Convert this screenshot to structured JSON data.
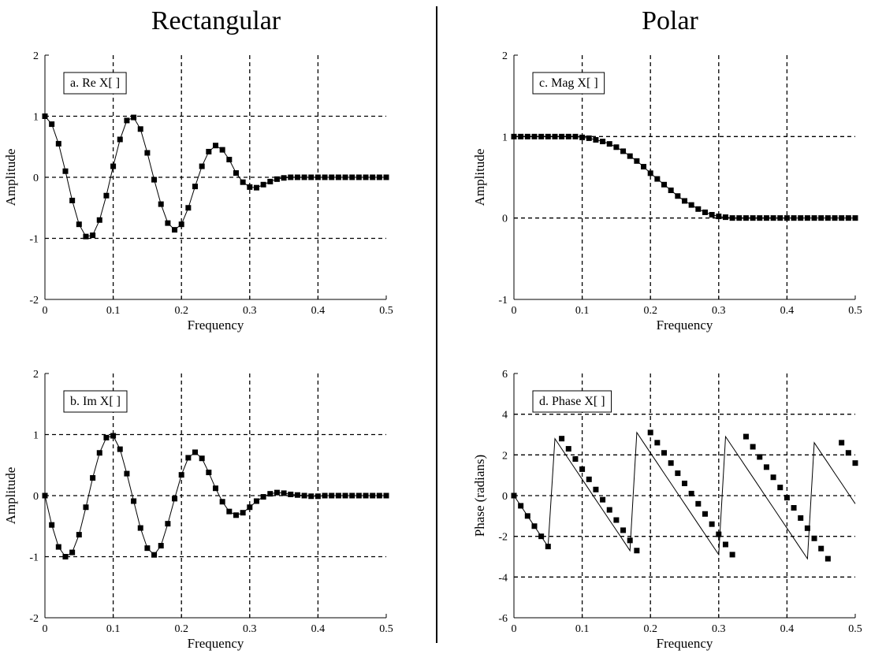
{
  "column_titles": {
    "left": "Rectangular",
    "right": "Polar"
  },
  "chart_data": [
    {
      "id": "a",
      "type": "line",
      "label": "a.  Re X[ ]",
      "xlabel": "Frequency",
      "ylabel": "Amplitude",
      "xlim": [
        0,
        0.5
      ],
      "ylim": [
        -2,
        2
      ],
      "xticks": [
        0,
        0.1,
        0.2,
        0.3,
        0.4,
        0.5
      ],
      "yticks": [
        -2,
        -1,
        0,
        1,
        2
      ],
      "xtick_labels": [
        "0",
        "0.1",
        "0.2",
        "0.3",
        "0.4",
        "0.5"
      ],
      "ytick_labels": [
        "-2",
        "-1",
        "0",
        "1",
        "2"
      ],
      "grid": "dashed",
      "x": [
        0,
        0.01,
        0.02,
        0.03,
        0.04,
        0.05,
        0.06,
        0.07,
        0.08,
        0.09,
        0.1,
        0.11,
        0.12,
        0.13,
        0.14,
        0.15,
        0.16,
        0.17,
        0.18,
        0.19,
        0.2,
        0.21,
        0.22,
        0.23,
        0.24,
        0.25,
        0.26,
        0.27,
        0.28,
        0.29,
        0.3,
        0.31,
        0.32,
        0.33,
        0.34,
        0.35,
        0.36,
        0.37,
        0.38,
        0.39,
        0.4,
        0.41,
        0.42,
        0.43,
        0.44,
        0.45,
        0.46,
        0.47,
        0.48,
        0.49,
        0.5
      ],
      "y": [
        1,
        0.87,
        0.55,
        0.1,
        -0.38,
        -0.77,
        -0.97,
        -0.95,
        -0.7,
        -0.3,
        0.18,
        0.62,
        0.93,
        0.98,
        0.79,
        0.4,
        -0.04,
        -0.44,
        -0.75,
        -0.86,
        -0.77,
        -0.5,
        -0.15,
        0.18,
        0.42,
        0.52,
        0.45,
        0.29,
        0.07,
        -0.08,
        -0.16,
        -0.17,
        -0.12,
        -0.07,
        -0.03,
        -0.01,
        0,
        0,
        0,
        0,
        0,
        0,
        0,
        0,
        0,
        0,
        0,
        0,
        0,
        0,
        0
      ]
    },
    {
      "id": "b",
      "type": "line",
      "label": "b.  Im X[ ]",
      "xlabel": "Frequency",
      "ylabel": "Amplitude",
      "xlim": [
        0,
        0.5
      ],
      "ylim": [
        -2,
        2
      ],
      "xticks": [
        0,
        0.1,
        0.2,
        0.3,
        0.4,
        0.5
      ],
      "yticks": [
        -2,
        -1,
        0,
        1,
        2
      ],
      "xtick_labels": [
        "0",
        "0.1",
        "0.2",
        "0.3",
        "0.4",
        "0.5"
      ],
      "ytick_labels": [
        "-2",
        "-1",
        "0",
        "1",
        "2"
      ],
      "grid": "dashed",
      "x": [
        0,
        0.01,
        0.02,
        0.03,
        0.04,
        0.05,
        0.06,
        0.07,
        0.08,
        0.09,
        0.1,
        0.11,
        0.12,
        0.13,
        0.14,
        0.15,
        0.16,
        0.17,
        0.18,
        0.19,
        0.2,
        0.21,
        0.22,
        0.23,
        0.24,
        0.25,
        0.26,
        0.27,
        0.28,
        0.29,
        0.3,
        0.31,
        0.32,
        0.33,
        0.34,
        0.35,
        0.36,
        0.37,
        0.38,
        0.39,
        0.4,
        0.41,
        0.42,
        0.43,
        0.44,
        0.45,
        0.46,
        0.47,
        0.48,
        0.49,
        0.5
      ],
      "y": [
        0,
        -0.48,
        -0.84,
        -1,
        -0.93,
        -0.64,
        -0.19,
        0.29,
        0.7,
        0.95,
        0.98,
        0.76,
        0.36,
        -0.09,
        -0.53,
        -0.86,
        -0.97,
        -0.82,
        -0.46,
        -0.05,
        0.34,
        0.62,
        0.71,
        0.61,
        0.38,
        0.12,
        -0.1,
        -0.26,
        -0.32,
        -0.28,
        -0.19,
        -0.09,
        -0.02,
        0.03,
        0.05,
        0.04,
        0.02,
        0.01,
        0,
        -0.01,
        -0.01,
        0,
        0,
        0,
        0,
        0,
        0,
        0,
        0,
        0,
        0
      ]
    },
    {
      "id": "c",
      "type": "line",
      "label": "c.  Mag X[ ]",
      "xlabel": "Frequency",
      "ylabel": "Amplitude",
      "xlim": [
        0,
        0.5
      ],
      "ylim": [
        -1,
        2
      ],
      "xticks": [
        0,
        0.1,
        0.2,
        0.3,
        0.4,
        0.5
      ],
      "yticks": [
        -1,
        0,
        1,
        2
      ],
      "xtick_labels": [
        "0",
        "0.1",
        "0.2",
        "0.3",
        "0.4",
        "0.5"
      ],
      "ytick_labels": [
        "-1",
        "0",
        "1",
        "2"
      ],
      "grid": "dashed",
      "x": [
        0,
        0.01,
        0.02,
        0.03,
        0.04,
        0.05,
        0.06,
        0.07,
        0.08,
        0.09,
        0.1,
        0.11,
        0.12,
        0.13,
        0.14,
        0.15,
        0.16,
        0.17,
        0.18,
        0.19,
        0.2,
        0.21,
        0.22,
        0.23,
        0.24,
        0.25,
        0.26,
        0.27,
        0.28,
        0.29,
        0.3,
        0.31,
        0.32,
        0.33,
        0.34,
        0.35,
        0.36,
        0.37,
        0.38,
        0.39,
        0.4,
        0.41,
        0.42,
        0.43,
        0.44,
        0.45,
        0.46,
        0.47,
        0.48,
        0.49,
        0.5
      ],
      "y": [
        1,
        1,
        1,
        1,
        1,
        1,
        1,
        1,
        1,
        1,
        0.99,
        0.98,
        0.96,
        0.94,
        0.91,
        0.87,
        0.82,
        0.76,
        0.7,
        0.63,
        0.55,
        0.48,
        0.41,
        0.34,
        0.27,
        0.21,
        0.16,
        0.11,
        0.07,
        0.04,
        0.02,
        0.01,
        0,
        0,
        0,
        0,
        0,
        0,
        0,
        0,
        0,
        0,
        0,
        0,
        0,
        0,
        0,
        0,
        0,
        0,
        0
      ]
    },
    {
      "id": "d",
      "type": "line",
      "label": "d.  Phase X[ ]",
      "xlabel": "Frequency",
      "ylabel": "Phase (radians)",
      "xlim": [
        0,
        0.5
      ],
      "ylim": [
        -6,
        6
      ],
      "xticks": [
        0,
        0.1,
        0.2,
        0.3,
        0.4,
        0.5
      ],
      "yticks": [
        -6,
        -4,
        -2,
        0,
        2,
        4,
        6
      ],
      "xtick_labels": [
        "0",
        "0.1",
        "0.2",
        "0.3",
        "0.4",
        "0.5"
      ],
      "ytick_labels": [
        "-6",
        "-4",
        "-2",
        "0",
        "2",
        "4",
        "6"
      ],
      "grid": "dashed",
      "x": [
        0,
        0.01,
        0.02,
        0.03,
        0.04,
        0.05,
        0.06,
        0.07,
        0.08,
        0.09,
        0.1,
        0.11,
        0.12,
        0.13,
        0.14,
        0.15,
        0.16,
        0.17,
        0.18,
        0.19,
        0.2,
        0.21,
        0.22,
        0.23,
        0.24,
        0.25,
        0.26,
        0.27,
        0.28,
        0.29,
        0.3,
        0.31,
        0.32,
        0.33,
        0.34,
        0.35,
        0.36,
        0.37,
        0.38,
        0.39,
        0.4,
        0.41,
        0.42,
        0.43,
        0.44,
        0.45,
        0.46,
        0.47,
        0.48,
        0.49,
        0.5
      ],
      "y": [
        0,
        -0.5,
        -1,
        -1.5,
        -2,
        -2.5,
        2.8,
        2.3,
        1.8,
        1.3,
        0.8,
        0.3,
        -0.2,
        -0.7,
        -1.2,
        -1.7,
        -2.2,
        -2.7,
        3.1,
        2.6,
        2.1,
        1.6,
        1.1,
        0.6,
        0.1,
        -0.4,
        -0.9,
        -1.4,
        -1.9,
        -2.4,
        -2.9,
        2.9,
        2.4,
        1.9,
        1.4,
        0.9,
        0.4,
        -0.1,
        -0.6,
        -1.1,
        -1.6,
        -2.1,
        -2.6,
        -3.1,
        2.6,
        2.1,
        1.6,
        1.1,
        0.6,
        0.1,
        -0.4
      ],
      "markers_y": [
        0,
        -0.5,
        -1,
        -1.5,
        -2,
        -2.5,
        null,
        2.8,
        2.3,
        1.8,
        1.3,
        0.8,
        0.3,
        -0.2,
        -0.7,
        -1.2,
        -1.7,
        -2.2,
        -2.7,
        null,
        3.1,
        2.6,
        2.1,
        1.6,
        1.1,
        0.6,
        0.1,
        -0.4,
        -0.9,
        -1.4,
        -1.9,
        -2.4,
        -2.9,
        null,
        2.9,
        2.4,
        1.9,
        1.4,
        0.9,
        0.4,
        -0.1,
        -0.6,
        -1.1,
        -1.6,
        -2.1,
        -2.6,
        -3.1,
        null,
        2.6,
        2.1,
        1.6
      ]
    }
  ]
}
